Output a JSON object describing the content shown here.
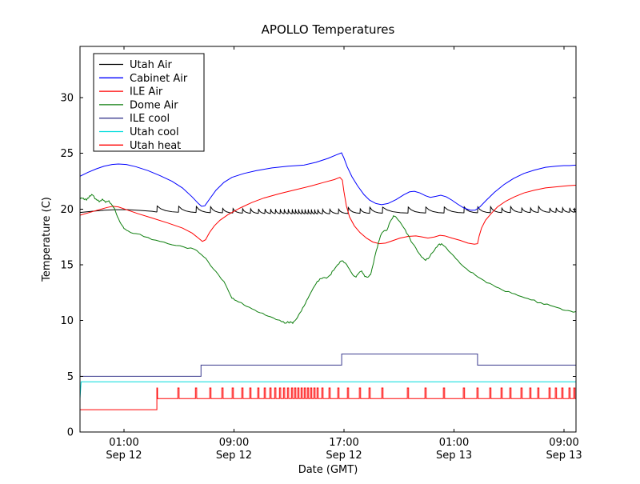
{
  "figure": {
    "title": "APOLLO Temperatures",
    "xlabel": "Date (GMT)",
    "ylabel": "Temperature (C)"
  },
  "chart_data": {
    "type": "line",
    "title": "APOLLO Temperatures",
    "xlabel": "Date (GMT)",
    "ylabel": "Temperature (C)",
    "x_unit": "hours since Sep 12 00:00 GMT",
    "xlim": [
      -2.2,
      33.87
    ],
    "ylim": [
      0,
      34.6
    ],
    "grid": false,
    "legend_position": "upper left",
    "yticks": [
      0,
      5,
      10,
      15,
      20,
      25,
      30
    ],
    "xticks": [
      {
        "hour": 1,
        "line1": "01:00",
        "line2": "Sep 12"
      },
      {
        "hour": 9,
        "line1": "09:00",
        "line2": "Sep 12"
      },
      {
        "hour": 17,
        "line1": "17:00",
        "line2": "Sep 12"
      },
      {
        "hour": 25,
        "line1": "01:00",
        "line2": "Sep 13"
      },
      {
        "hour": 33,
        "line1": "09:00",
        "line2": "Sep 13"
      }
    ],
    "heat_spike_hours": [
      3.39,
      4.96,
      6.24,
      7.28,
      8.16,
      8.91,
      9.61,
      10.19,
      10.77,
      11.24,
      11.65,
      12.0,
      12.35,
      12.64,
      12.93,
      13.22,
      13.45,
      13.68,
      13.92,
      14.15,
      14.38,
      14.61,
      14.85,
      15.08,
      15.43,
      15.95,
      16.59,
      17.29,
      18.16,
      18.86,
      19.79,
      21.65,
      22.93,
      24.27,
      25.72,
      26.71,
      27.64,
      28.46,
      29.1,
      29.91,
      30.55,
      31.13,
      31.95,
      32.41,
      32.88,
      33.4,
      33.75
    ],
    "series": [
      {
        "name": "Utah Air",
        "color": "#000000",
        "render": "sawtooth",
        "spike_rise": 0.56,
        "spike_rise_dense": 0.42,
        "smooth": [
          [
            -2.2,
            19.7
          ],
          [
            -1.33,
            19.8
          ],
          [
            -0.45,
            19.9
          ],
          [
            0.42,
            19.95
          ],
          [
            1.29,
            19.95
          ],
          [
            2.16,
            19.88
          ],
          [
            3.04,
            19.8
          ],
          [
            3.39,
            19.74
          ]
        ],
        "baseline_anchors": [
          [
            3.39,
            19.72
          ],
          [
            6,
            19.68
          ],
          [
            9,
            19.63
          ],
          [
            12,
            19.58
          ],
          [
            15,
            19.55
          ],
          [
            18,
            19.6
          ],
          [
            21,
            19.62
          ],
          [
            24,
            19.63
          ],
          [
            27,
            19.65
          ],
          [
            30,
            19.68
          ],
          [
            33.87,
            19.7
          ]
        ]
      },
      {
        "name": "Cabinet Air",
        "color": "#0000ff",
        "render": "line",
        "points": [
          [
            -2.2,
            22.95
          ],
          [
            -1.62,
            23.3
          ],
          [
            -1.04,
            23.6
          ],
          [
            -0.45,
            23.85
          ],
          [
            0.13,
            24.0
          ],
          [
            0.59,
            24.05
          ],
          [
            1.17,
            24.0
          ],
          [
            1.87,
            23.8
          ],
          [
            2.75,
            23.45
          ],
          [
            3.62,
            23.0
          ],
          [
            4.49,
            22.5
          ],
          [
            5.25,
            21.9
          ],
          [
            5.95,
            21.1
          ],
          [
            6.41,
            20.5
          ],
          [
            6.64,
            20.25
          ],
          [
            6.88,
            20.3
          ],
          [
            7.22,
            20.9
          ],
          [
            7.69,
            21.7
          ],
          [
            8.27,
            22.4
          ],
          [
            8.85,
            22.85
          ],
          [
            9.73,
            23.2
          ],
          [
            10.6,
            23.45
          ],
          [
            11.76,
            23.7
          ],
          [
            12.93,
            23.85
          ],
          [
            14.09,
            23.95
          ],
          [
            14.96,
            24.2
          ],
          [
            15.83,
            24.55
          ],
          [
            16.41,
            24.85
          ],
          [
            16.82,
            25.05
          ],
          [
            16.99,
            24.6
          ],
          [
            17.23,
            23.8
          ],
          [
            17.58,
            22.9
          ],
          [
            17.98,
            22.1
          ],
          [
            18.45,
            21.3
          ],
          [
            18.86,
            20.8
          ],
          [
            19.32,
            20.5
          ],
          [
            19.73,
            20.4
          ],
          [
            20.19,
            20.5
          ],
          [
            20.78,
            20.85
          ],
          [
            21.36,
            21.3
          ],
          [
            21.77,
            21.55
          ],
          [
            22.12,
            21.6
          ],
          [
            22.52,
            21.45
          ],
          [
            22.93,
            21.2
          ],
          [
            23.28,
            21.05
          ],
          [
            23.69,
            21.15
          ],
          [
            24.04,
            21.25
          ],
          [
            24.44,
            21.1
          ],
          [
            24.85,
            20.8
          ],
          [
            25.26,
            20.45
          ],
          [
            25.72,
            20.1
          ],
          [
            26.19,
            19.9
          ],
          [
            26.53,
            19.9
          ],
          [
            26.88,
            20.2
          ],
          [
            27.35,
            20.8
          ],
          [
            27.93,
            21.5
          ],
          [
            28.63,
            22.2
          ],
          [
            29.33,
            22.75
          ],
          [
            30.08,
            23.2
          ],
          [
            30.84,
            23.5
          ],
          [
            31.65,
            23.75
          ],
          [
            32.41,
            23.85
          ],
          [
            32.99,
            23.9
          ],
          [
            33.4,
            23.9
          ],
          [
            33.87,
            23.95
          ]
        ]
      },
      {
        "name": "ILE Air",
        "color": "#ff0000",
        "render": "line",
        "points": [
          [
            -2.2,
            19.45
          ],
          [
            -1.5,
            19.7
          ],
          [
            -0.8,
            19.95
          ],
          [
            -0.22,
            20.15
          ],
          [
            0.19,
            20.25
          ],
          [
            0.59,
            20.2
          ],
          [
            1.17,
            19.95
          ],
          [
            1.99,
            19.6
          ],
          [
            3.04,
            19.2
          ],
          [
            4.2,
            18.75
          ],
          [
            5.25,
            18.3
          ],
          [
            5.95,
            17.85
          ],
          [
            6.41,
            17.4
          ],
          [
            6.7,
            17.1
          ],
          [
            6.93,
            17.25
          ],
          [
            7.22,
            17.9
          ],
          [
            7.57,
            18.5
          ],
          [
            7.98,
            19.0
          ],
          [
            8.56,
            19.5
          ],
          [
            9.44,
            20.1
          ],
          [
            10.31,
            20.6
          ],
          [
            11.18,
            21.0
          ],
          [
            12.35,
            21.4
          ],
          [
            13.51,
            21.75
          ],
          [
            14.67,
            22.1
          ],
          [
            15.54,
            22.4
          ],
          [
            16.29,
            22.65
          ],
          [
            16.7,
            22.85
          ],
          [
            16.88,
            22.6
          ],
          [
            16.99,
            21.6
          ],
          [
            17.17,
            20.3
          ],
          [
            17.4,
            19.3
          ],
          [
            17.75,
            18.5
          ],
          [
            18.16,
            17.9
          ],
          [
            18.63,
            17.4
          ],
          [
            19.09,
            17.05
          ],
          [
            19.56,
            16.9
          ],
          [
            20.02,
            16.95
          ],
          [
            20.49,
            17.15
          ],
          [
            21.07,
            17.4
          ],
          [
            21.65,
            17.55
          ],
          [
            22.23,
            17.6
          ],
          [
            22.7,
            17.5
          ],
          [
            23.1,
            17.4
          ],
          [
            23.57,
            17.5
          ],
          [
            23.98,
            17.65
          ],
          [
            24.33,
            17.6
          ],
          [
            24.85,
            17.4
          ],
          [
            25.43,
            17.2
          ],
          [
            26.01,
            16.95
          ],
          [
            26.48,
            16.85
          ],
          [
            26.71,
            16.9
          ],
          [
            26.83,
            17.6
          ],
          [
            27.0,
            18.3
          ],
          [
            27.29,
            19.0
          ],
          [
            27.7,
            19.6
          ],
          [
            28.16,
            20.2
          ],
          [
            28.75,
            20.7
          ],
          [
            29.39,
            21.1
          ],
          [
            30.08,
            21.45
          ],
          [
            30.84,
            21.7
          ],
          [
            31.65,
            21.9
          ],
          [
            32.47,
            22.0
          ],
          [
            33.29,
            22.1
          ],
          [
            33.87,
            22.15
          ]
        ]
      },
      {
        "name": "Dome Air",
        "color": "#0f7f0f",
        "render": "line",
        "noise": true,
        "points": [
          [
            -2.2,
            20.9
          ],
          [
            -1.97,
            21.0
          ],
          [
            -1.73,
            20.8
          ],
          [
            -1.5,
            21.2
          ],
          [
            -1.27,
            21.25
          ],
          [
            -1.04,
            20.9
          ],
          [
            -0.8,
            20.65
          ],
          [
            -0.57,
            20.9
          ],
          [
            -0.34,
            20.6
          ],
          [
            -0.1,
            20.75
          ],
          [
            0.13,
            20.35
          ],
          [
            0.3,
            20.1
          ],
          [
            0.53,
            19.3
          ],
          [
            0.77,
            18.7
          ],
          [
            1.0,
            18.25
          ],
          [
            1.29,
            18.05
          ],
          [
            1.87,
            17.8
          ],
          [
            2.75,
            17.45
          ],
          [
            3.62,
            17.1
          ],
          [
            4.49,
            16.8
          ],
          [
            5.36,
            16.6
          ],
          [
            6.12,
            16.4
          ],
          [
            6.64,
            15.9
          ],
          [
            7.11,
            15.3
          ],
          [
            7.69,
            14.4
          ],
          [
            8.27,
            13.5
          ],
          [
            8.85,
            12.0
          ],
          [
            9.14,
            11.8
          ],
          [
            9.73,
            11.4
          ],
          [
            10.31,
            11.05
          ],
          [
            10.89,
            10.7
          ],
          [
            11.47,
            10.4
          ],
          [
            12.05,
            10.1
          ],
          [
            12.46,
            9.9
          ],
          [
            12.81,
            9.78
          ],
          [
            13.1,
            9.9
          ],
          [
            13.27,
            9.75
          ],
          [
            13.51,
            10.1
          ],
          [
            13.8,
            10.7
          ],
          [
            14.09,
            11.3
          ],
          [
            14.38,
            12.0
          ],
          [
            14.67,
            12.7
          ],
          [
            14.96,
            13.3
          ],
          [
            15.25,
            13.75
          ],
          [
            15.48,
            13.85
          ],
          [
            15.72,
            13.8
          ],
          [
            15.95,
            14.05
          ],
          [
            16.24,
            14.5
          ],
          [
            16.53,
            15.0
          ],
          [
            16.82,
            15.35
          ],
          [
            17.11,
            15.15
          ],
          [
            17.4,
            14.6
          ],
          [
            17.64,
            14.1
          ],
          [
            17.87,
            13.9
          ],
          [
            18.1,
            14.3
          ],
          [
            18.28,
            14.45
          ],
          [
            18.51,
            13.95
          ],
          [
            18.74,
            13.9
          ],
          [
            18.92,
            14.1
          ],
          [
            19.09,
            14.9
          ],
          [
            19.27,
            15.9
          ],
          [
            19.5,
            17.0
          ],
          [
            19.73,
            17.8
          ],
          [
            19.91,
            18.05
          ],
          [
            20.14,
            18.15
          ],
          [
            20.37,
            18.9
          ],
          [
            20.6,
            19.4
          ],
          [
            20.83,
            19.2
          ],
          [
            21.07,
            18.85
          ],
          [
            21.36,
            18.3
          ],
          [
            21.65,
            17.7
          ],
          [
            22.0,
            16.9
          ],
          [
            22.35,
            16.2
          ],
          [
            22.64,
            15.7
          ],
          [
            22.93,
            15.4
          ],
          [
            23.22,
            15.7
          ],
          [
            23.57,
            16.3
          ],
          [
            23.86,
            16.8
          ],
          [
            24.09,
            16.9
          ],
          [
            24.38,
            16.6
          ],
          [
            24.73,
            16.1
          ],
          [
            25.14,
            15.55
          ],
          [
            25.6,
            14.95
          ],
          [
            26.07,
            14.45
          ],
          [
            26.53,
            14.1
          ],
          [
            27.17,
            13.6
          ],
          [
            27.81,
            13.2
          ],
          [
            28.51,
            12.75
          ],
          [
            29.21,
            12.45
          ],
          [
            29.91,
            12.15
          ],
          [
            30.61,
            11.85
          ],
          [
            31.31,
            11.6
          ],
          [
            32.01,
            11.35
          ],
          [
            32.7,
            11.1
          ],
          [
            33.29,
            10.9
          ],
          [
            33.87,
            10.8
          ]
        ]
      },
      {
        "name": "ILE cool",
        "color": "#3b3b8f",
        "render": "line",
        "points": [
          [
            -2.2,
            5.0
          ],
          [
            6.6,
            5.0
          ],
          [
            6.6,
            6.0
          ],
          [
            16.83,
            6.0
          ],
          [
            16.83,
            7.0
          ],
          [
            26.71,
            7.0
          ],
          [
            26.71,
            6.0
          ],
          [
            33.87,
            6.0
          ]
        ]
      },
      {
        "name": "Utah cool",
        "color": "#00dcdc",
        "render": "line",
        "points": [
          [
            -2.2,
            3.0
          ],
          [
            -2.12,
            4.5
          ],
          [
            33.87,
            4.5
          ]
        ]
      },
      {
        "name": "Utah heat",
        "color": "#ff0000",
        "render": "heat",
        "flat": [
          [
            -2.2,
            2.0
          ],
          [
            3.39,
            2.0
          ]
        ],
        "baseline": 3.0,
        "spike_top": 3.95
      }
    ]
  }
}
